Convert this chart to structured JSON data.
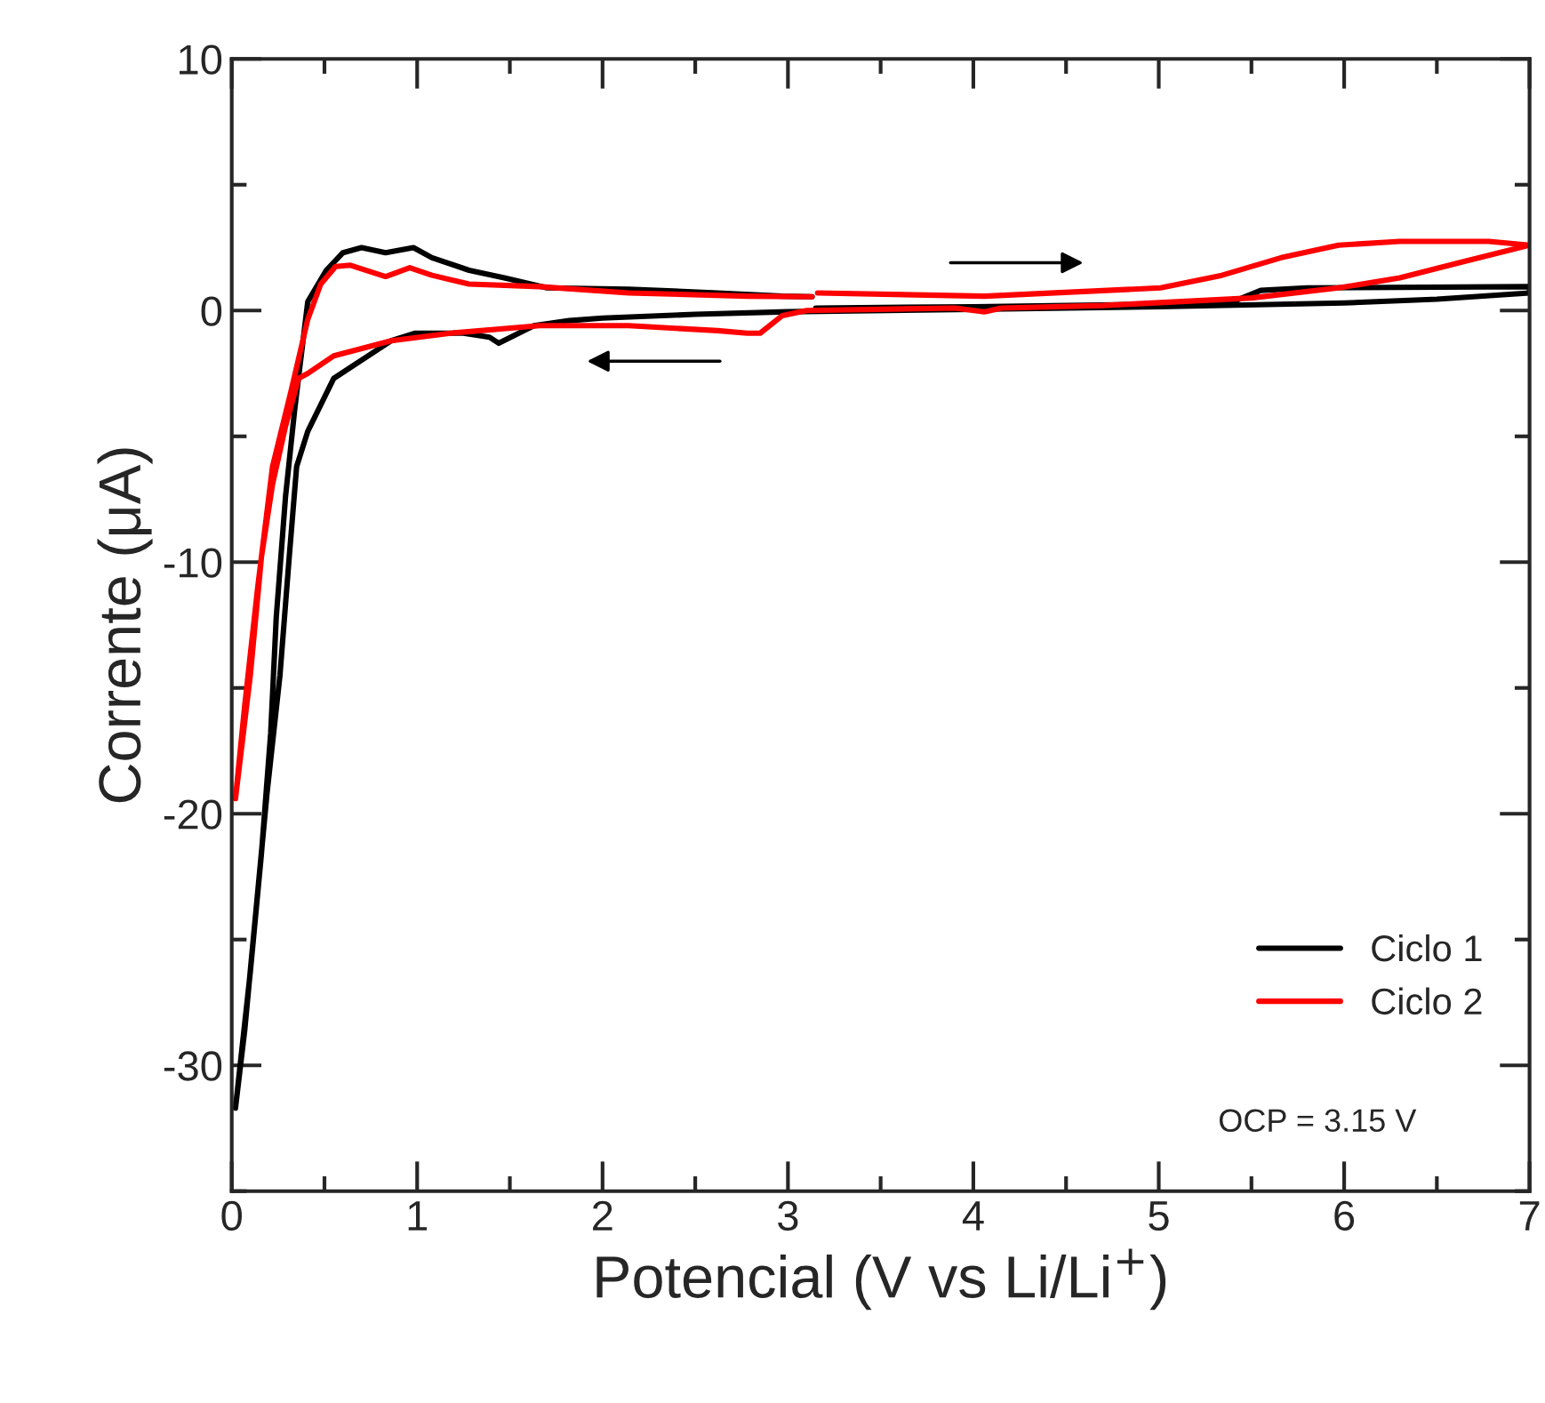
{
  "chart_data": {
    "type": "line",
    "xlabel": "Potencial (V vs Li/Li$^{+}$)",
    "ylabel": "Corrente (μA)",
    "xlim": [
      0,
      7
    ],
    "ylim": [
      -35,
      10
    ],
    "xticks": [
      0,
      1,
      2,
      3,
      4,
      5,
      6,
      7
    ],
    "yticks": [
      -30,
      -20,
      -10,
      0,
      10
    ],
    "grid": false,
    "legend": "bottom right",
    "marker": "none",
    "line_style": "solid",
    "annotations": [
      "OCP = 3.15 V"
    ],
    "series": [
      {
        "name": "Ciclo 1",
        "color": "#000000",
        "x": [
          3.15,
          4,
          5,
          5.4,
          5.55,
          5.8,
          7,
          7,
          6.5,
          6,
          5,
          4,
          3,
          2.5,
          2,
          1.82,
          1.63,
          1.44,
          1.39,
          1.25,
          0.99,
          0.86,
          0.55,
          0.41,
          0.35,
          0.31,
          0.26,
          0.19,
          0.13,
          0.07,
          0.02,
          0.1,
          0.16,
          0.21,
          0.24,
          0.29,
          0.34,
          0.41,
          0.51,
          0.6,
          0.7,
          0.83,
          0.98,
          1.08,
          1.28,
          1.47,
          1.7,
          2.14,
          2.62,
          2.97,
          3.13
        ],
        "values": [
          0.1,
          0.15,
          0.25,
          0.35,
          0.8,
          0.9,
          0.95,
          0.7,
          0.45,
          0.3,
          0.15,
          0.05,
          -0.05,
          -0.15,
          -0.3,
          -0.4,
          -0.6,
          -1.3,
          -1.06,
          -0.9,
          -0.9,
          -1.2,
          -2.7,
          -4.8,
          -6.2,
          -9.8,
          -14.5,
          -19.2,
          -23.9,
          -28.6,
          -31.7,
          -26.3,
          -21.6,
          -16.8,
          -12.2,
          -7.4,
          -3.9,
          0.35,
          1.6,
          2.3,
          2.5,
          2.3,
          2.5,
          2.1,
          1.6,
          1.3,
          0.9,
          0.85,
          0.7,
          0.57,
          0.55
        ]
      },
      {
        "name": "Ciclo 2",
        "color": "#ff0000",
        "x": [
          3.16,
          4.06,
          5.01,
          5.34,
          5.66,
          5.97,
          6.3,
          6.78,
          7,
          6.62,
          6.3,
          5.97,
          5.5,
          4.7,
          4.15,
          4.06,
          3.9,
          3.1,
          2.97,
          2.85,
          2.78,
          2.62,
          2.14,
          1.66,
          1.18,
          0.86,
          0.55,
          0.41,
          0.36,
          0.29,
          0.22,
          0.16,
          0.1,
          0.02,
          0.07,
          0.14,
          0.22,
          0.32,
          0.41,
          0.48,
          0.56,
          0.64,
          0.83,
          0.96,
          1.08,
          1.28,
          1.66,
          2.14,
          2.78,
          3.13
        ],
        "values": [
          0.7,
          0.57,
          0.9,
          1.4,
          2.1,
          2.6,
          2.75,
          2.75,
          2.6,
          1.9,
          1.3,
          0.9,
          0.5,
          0.2,
          0.1,
          -0.05,
          0.1,
          0.0,
          -0.2,
          -0.9,
          -0.9,
          -0.8,
          -0.6,
          -0.6,
          -0.9,
          -1.2,
          -1.8,
          -2.5,
          -2.7,
          -4.6,
          -6.9,
          -9.8,
          -14.5,
          -19.4,
          -15.7,
          -11,
          -6.2,
          -3.2,
          -0.35,
          1.05,
          1.75,
          1.8,
          1.35,
          1.7,
          1.4,
          1.05,
          0.95,
          0.7,
          0.57,
          0.55
        ]
      }
    ]
  }
}
